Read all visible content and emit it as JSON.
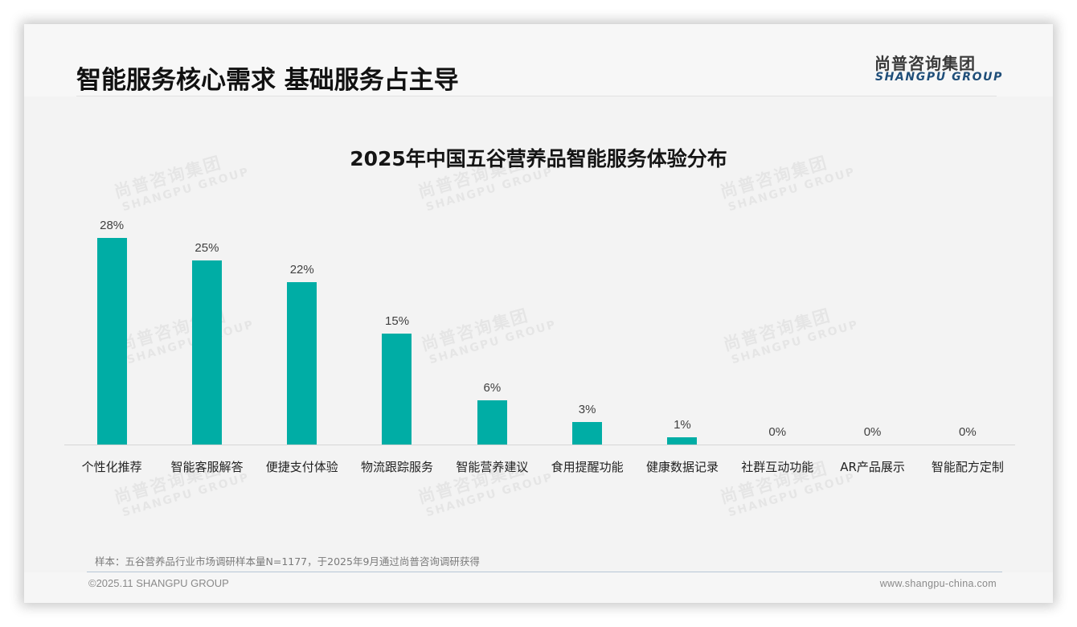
{
  "header": {
    "title": "智能服务核心需求 基础服务占主导",
    "logo_cn": "尚普咨询集团",
    "logo_en": "SHANGPU GROUP"
  },
  "watermark": {
    "cn": "尚普咨询集团",
    "en": "SHANGPU GROUP"
  },
  "colors": {
    "bar": "#00ada5",
    "brand_blue": "#1f4e79"
  },
  "chart_data": {
    "type": "bar",
    "title": "2025年中国五谷营养品智能服务体验分布",
    "xlabel": "",
    "ylabel": "",
    "ylim": [
      0,
      30
    ],
    "grid": false,
    "legend": null,
    "value_format": "percent",
    "categories": [
      "个性化推荐",
      "智能客服解答",
      "便捷支付体验",
      "物流跟踪服务",
      "智能营养建议",
      "食用提醒功能",
      "健康数据记录",
      "社群互动功能",
      "AR产品展示",
      "智能配方定制"
    ],
    "values": [
      28,
      25,
      22,
      15,
      6,
      3,
      1,
      0,
      0,
      0
    ],
    "labels": [
      "28%",
      "25%",
      "22%",
      "15%",
      "6%",
      "3%",
      "1%",
      "0%",
      "0%",
      "0%"
    ]
  },
  "footer": {
    "note": "样本：五谷营养品行业市场调研样本量N=1177，于2025年9月通过尚普咨询调研获得",
    "copyright": "©2025.11 SHANGPU GROUP",
    "website": "www.shangpu-china.com"
  }
}
